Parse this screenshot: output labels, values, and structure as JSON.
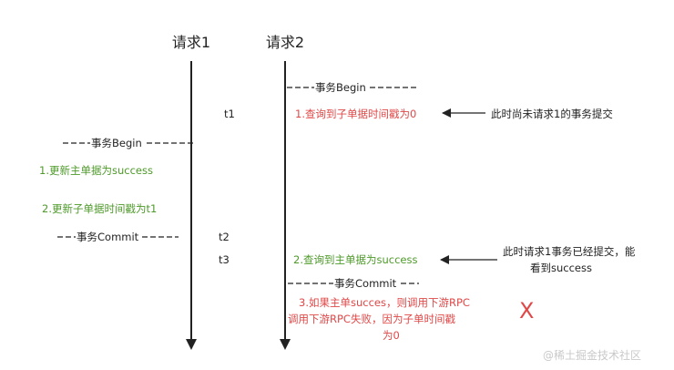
{
  "headers": {
    "req1": "请求1",
    "req2": "请求2"
  },
  "times": {
    "t1": "t1",
    "t2": "t2",
    "t3": "t3"
  },
  "boundaries": {
    "req2_begin": "事务Begin",
    "req1_begin": "事务Begin",
    "req1_commit": "事务Commit",
    "req2_commit": "事务Commit"
  },
  "steps": {
    "req2_step1": "1.查询到子单据时间戳为0",
    "req1_step1": "1.更新主单据为success",
    "req1_step2": "2.更新子单据时间戳为t1",
    "req2_step2": "2.查询到主单据为success",
    "req2_step3_lines": [
      "3.如果主单succes，则调用下游RPC",
      "调用下游RPC失败，因为子单时间戳",
      "为0"
    ]
  },
  "notes": {
    "note1": "此时尚未请求1的事务提交",
    "note2_lines": [
      "此时请求1事务已经提交，能",
      "看到success"
    ]
  },
  "fail_mark": "X",
  "watermark": "@稀土掘金技术社区",
  "colors": {
    "line": "#222222",
    "green": "#4e9a2a",
    "red": "#e04848",
    "watermark": "#c9c9c9"
  }
}
